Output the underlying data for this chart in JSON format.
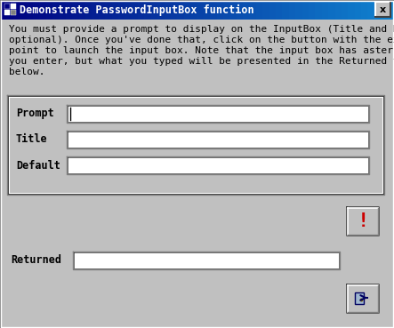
{
  "title": "Demonstrate PasswordInputBox function",
  "bg_color": "#c0c0c0",
  "titlebar_color_left": "#000080",
  "titlebar_color_right": "#1084d0",
  "titlebar_text_color": "#ffffff",
  "desc_lines": [
    "You must provide a prompt to display on the InputBox (Title and Default are",
    "optional). Once you've done that, click on the button with the exclamation",
    "point to launch the input box. Note that the input box has asterisks for what",
    "you enter, but what you typed will be presented in the Returned text box",
    "below."
  ],
  "desc_fontsize": 8.0,
  "field_labels": [
    "Prompt",
    "Title",
    "Default"
  ],
  "returned_label": "Returned",
  "field_bg": "#ffffff",
  "label_fontsize": 8.5,
  "title_fontsize": 8.5
}
